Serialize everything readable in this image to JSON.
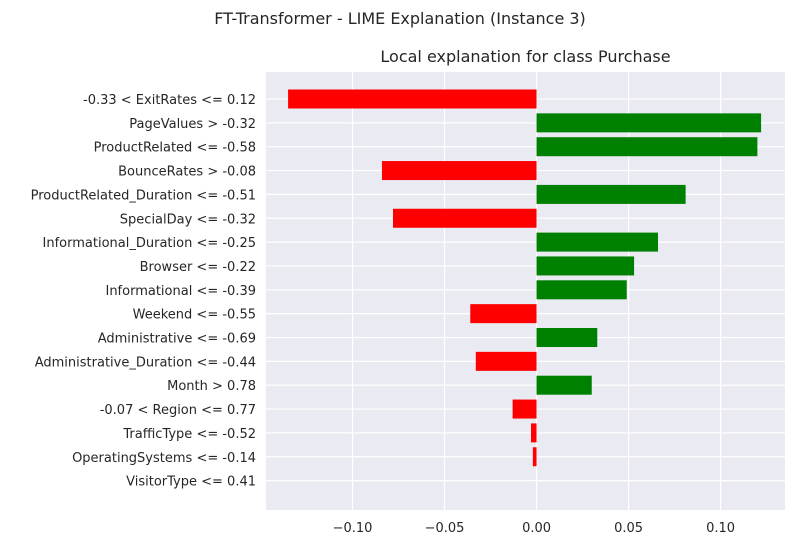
{
  "figure": {
    "suptitle": "FT-Transformer - LIME Explanation (Instance 3)"
  },
  "chart_data": {
    "type": "bar",
    "orientation": "horizontal",
    "title": "Local explanation for class Purchase",
    "xlabel": "",
    "ylabel": "",
    "xlim": [
      -0.147,
      0.135
    ],
    "xticks": [
      -0.1,
      -0.05,
      0.0,
      0.05,
      0.1
    ],
    "xtick_labels": [
      "−0.10",
      "−0.05",
      "0.00",
      "0.05",
      "0.10"
    ],
    "grid": true,
    "background": "#eaeaf2",
    "colors": {
      "positive": "#008000",
      "negative": "#ff0000"
    },
    "categories": [
      "-0.33 < ExitRates <= 0.12",
      "PageValues > -0.32",
      "ProductRelated <= -0.58",
      "BounceRates > -0.08",
      "ProductRelated_Duration <= -0.51",
      "SpecialDay <= -0.32",
      "Informational_Duration <= -0.25",
      "Browser <= -0.22",
      "Informational <= -0.39",
      "Weekend <= -0.55",
      "Administrative <= -0.69",
      "Administrative_Duration <= -0.44",
      "Month > 0.78",
      "-0.07 < Region <= 0.77",
      "TrafficType <= -0.52",
      "OperatingSystems <= -0.14",
      "VisitorType <= 0.41"
    ],
    "values": [
      -0.135,
      0.122,
      0.12,
      -0.084,
      0.081,
      -0.078,
      0.066,
      0.053,
      0.049,
      -0.036,
      0.033,
      -0.033,
      0.03,
      -0.013,
      -0.003,
      -0.002,
      0.0
    ]
  }
}
